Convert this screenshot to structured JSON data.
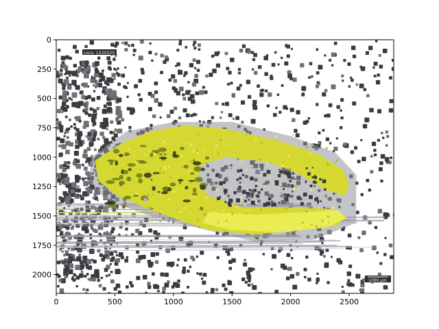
{
  "figure": {
    "background": "#ffffff",
    "axes_color": "#000000"
  },
  "image": {
    "subject": "false-color microscopy image of a tissue section",
    "x_range": [
      0,
      2880
    ],
    "y_range": [
      2160,
      0
    ],
    "colors": {
      "speckle": "#3a3b3f",
      "speckle_light": "#6f7075",
      "tissue_yellow": "#d6d832",
      "tissue_bright": "#ecef55",
      "tissue_dark": "#6e7a1c",
      "streak": "#9a9ca3"
    },
    "overlay_top_left": "Lens: 1X20X20",
    "overlay_bottom_right": "1000 µm"
  },
  "x_axis": {
    "ticks": [
      "0",
      "500",
      "1000",
      "1500",
      "2000",
      "2500"
    ],
    "tick_values": [
      0,
      500,
      1000,
      1500,
      2000,
      2500
    ]
  },
  "y_axis": {
    "ticks": [
      "0",
      "250",
      "500",
      "750",
      "1000",
      "1250",
      "1500",
      "1750",
      "2000"
    ],
    "tick_values": [
      0,
      250,
      500,
      750,
      1000,
      1250,
      1500,
      1750,
      2000
    ]
  }
}
